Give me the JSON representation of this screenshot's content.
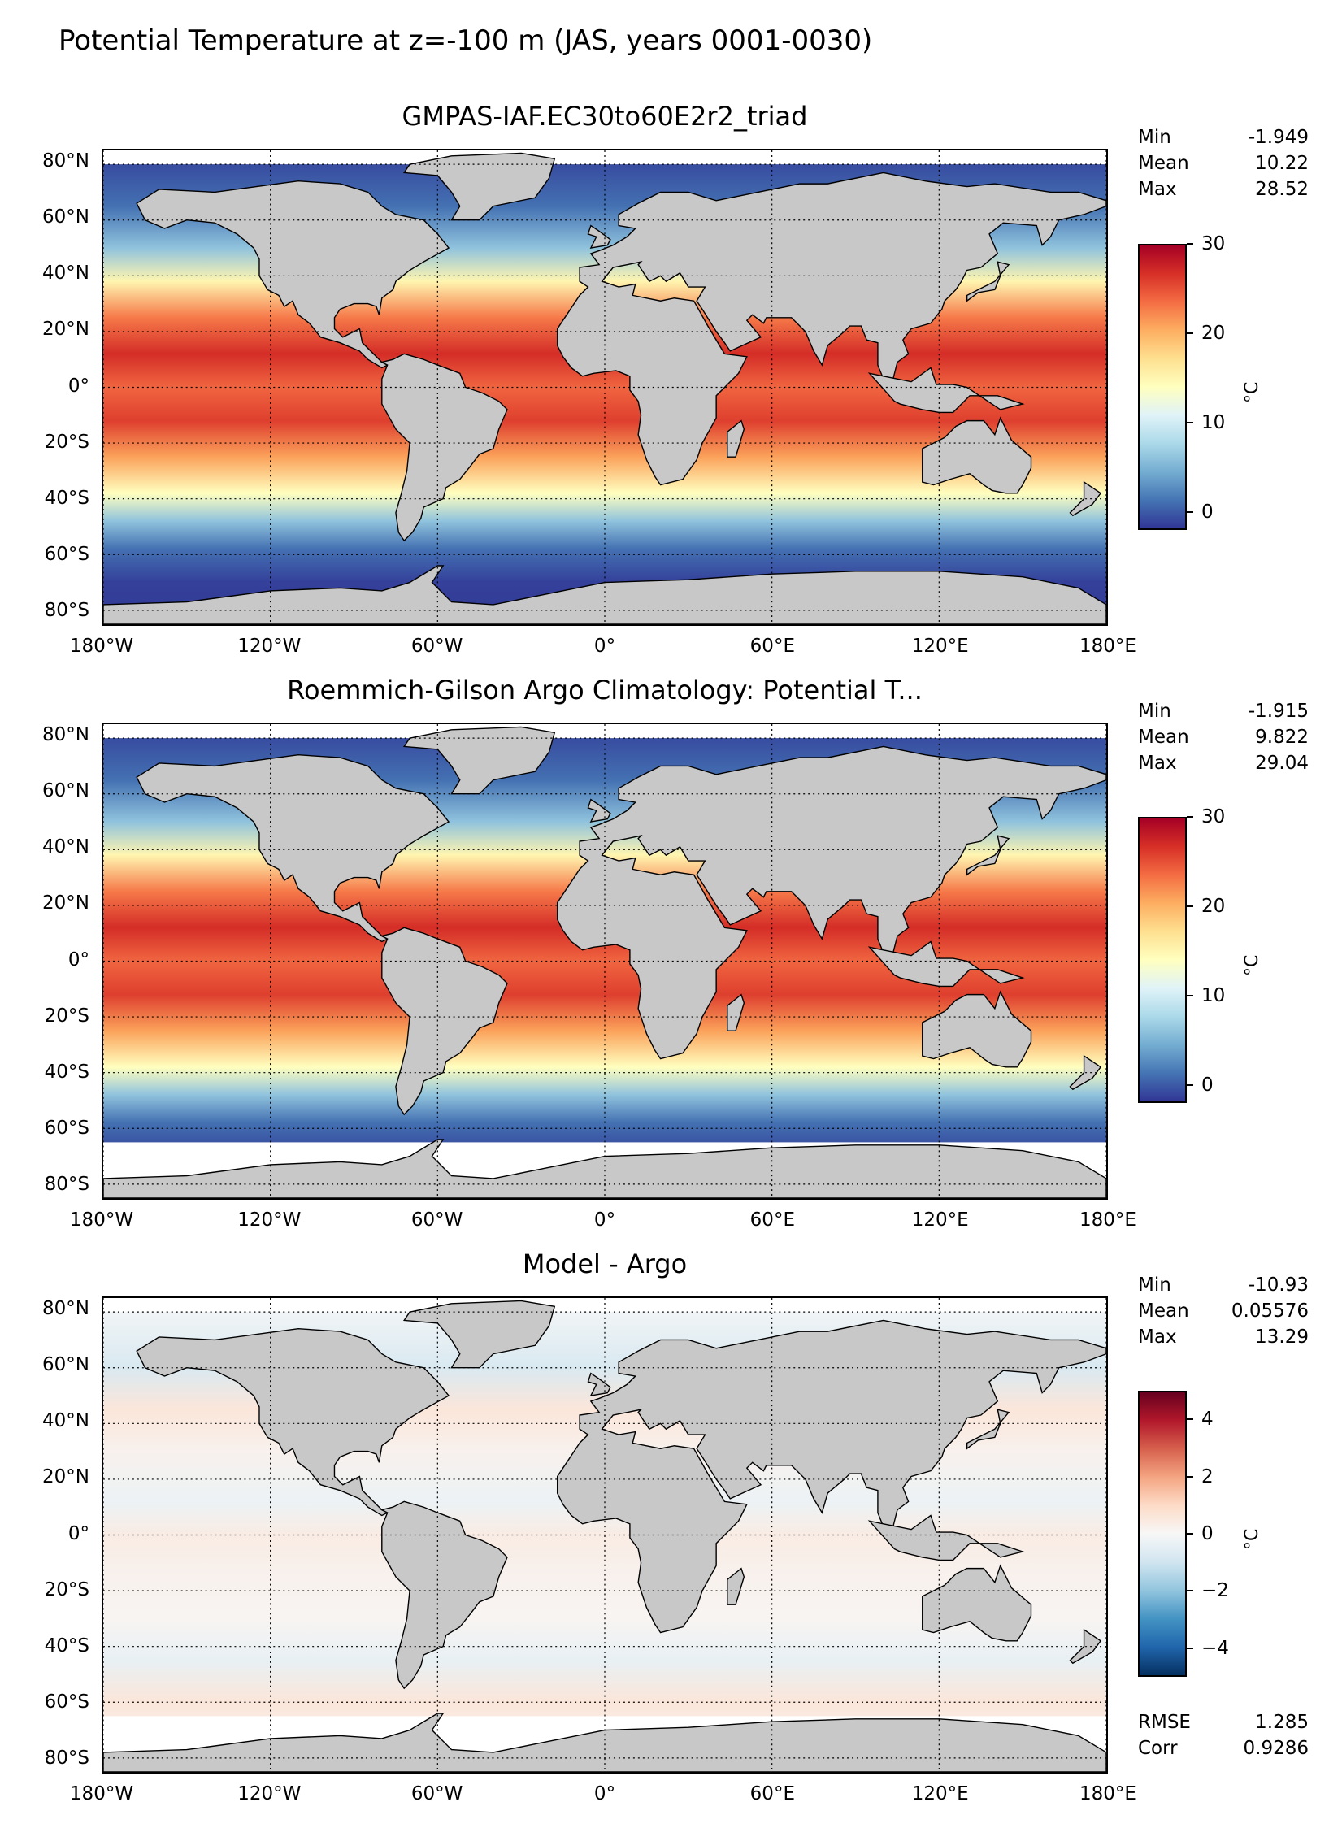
{
  "suptitle": "Potential Temperature at z=-100 m (JAS, years 0001-0030)",
  "lat_labels": [
    "80°N",
    "60°N",
    "40°N",
    "20°N",
    "0°",
    "20°S",
    "40°S",
    "60°S",
    "80°S"
  ],
  "lon_labels": [
    "180°W",
    "120°W",
    "60°W",
    "0°",
    "60°E",
    "120°E",
    "180°E"
  ],
  "colors": {
    "land": "#c8c8c8",
    "nodata": "#ffffff",
    "grid": "#000000",
    "rdylbu_r": [
      "#313695",
      "#4575b4",
      "#74add1",
      "#abd9e9",
      "#e0f3f8",
      "#ffffbf",
      "#fee090",
      "#fdae61",
      "#f46d43",
      "#d73027",
      "#a50026"
    ],
    "rdbu_r": [
      "#053061",
      "#2166ac",
      "#4393c3",
      "#92c5de",
      "#d1e5f0",
      "#f7f7f7",
      "#fddbc7",
      "#f4a582",
      "#d6604d",
      "#b2182b",
      "#67001f"
    ]
  },
  "panels": [
    {
      "title": "GMPAS-IAF.EC30to60E2r2_triad",
      "stats": {
        "min_label": "Min",
        "min": "-1.949",
        "mean_label": "Mean",
        "mean": "10.22",
        "max_label": "Max",
        "max": "28.52"
      },
      "colorbar": {
        "ticks": [
          "30",
          "20",
          "10",
          "0"
        ],
        "unit": "°C",
        "range": [
          -2,
          30
        ]
      }
    },
    {
      "title": "Roemmich-Gilson Argo Climatology: Potential T...",
      "stats": {
        "min_label": "Min",
        "min": "-1.915",
        "mean_label": "Mean",
        "mean": "9.822",
        "max_label": "Max",
        "max": "29.04"
      },
      "colorbar": {
        "ticks": [
          "30",
          "20",
          "10",
          "0"
        ],
        "unit": "°C",
        "range": [
          -2,
          30
        ]
      }
    },
    {
      "title": "Model - Argo",
      "stats": {
        "min_label": "Min",
        "min": "-10.93",
        "mean_label": "Mean",
        "mean": "0.05576",
        "max_label": "Max",
        "max": "13.29"
      },
      "colorbar": {
        "ticks": [
          "4",
          "2",
          "0",
          "−2",
          "−4"
        ],
        "unit": "°C",
        "range": [
          -5,
          5
        ]
      },
      "error_stats": {
        "rmse_label": "RMSE",
        "rmse": "1.285",
        "corr_label": "Corr",
        "corr": "0.9286"
      }
    }
  ]
}
